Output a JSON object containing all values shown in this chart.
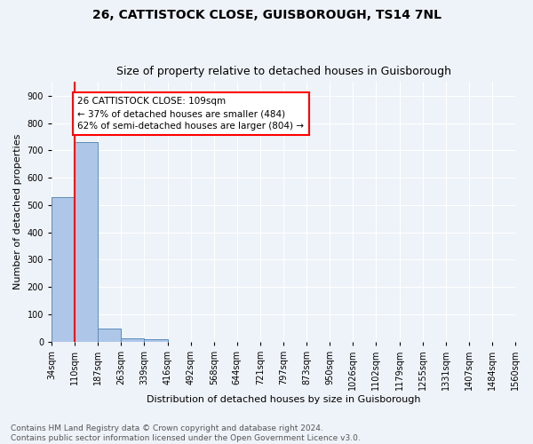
{
  "title_line1": "26, CATTISTOCK CLOSE, GUISBOROUGH, TS14 7NL",
  "title_line2": "Size of property relative to detached houses in Guisborough",
  "xlabel": "Distribution of detached houses by size in Guisborough",
  "ylabel": "Number of detached properties",
  "footnote": "Contains HM Land Registry data © Crown copyright and database right 2024.\nContains public sector information licensed under the Open Government Licence v3.0.",
  "bin_edges": [
    34,
    110,
    187,
    263,
    339,
    416,
    492,
    568,
    644,
    721,
    797,
    873,
    950,
    1026,
    1102,
    1179,
    1255,
    1331,
    1407,
    1484,
    1560
  ],
  "bin_labels": [
    "34sqm",
    "110sqm",
    "187sqm",
    "263sqm",
    "339sqm",
    "416sqm",
    "492sqm",
    "568sqm",
    "644sqm",
    "721sqm",
    "797sqm",
    "873sqm",
    "950sqm",
    "1026sqm",
    "1102sqm",
    "1179sqm",
    "1255sqm",
    "1331sqm",
    "1407sqm",
    "1484sqm",
    "1560sqm"
  ],
  "bar_heights": [
    528,
    730,
    48,
    12,
    10,
    0,
    0,
    0,
    0,
    0,
    0,
    0,
    0,
    0,
    0,
    0,
    0,
    0,
    0,
    0
  ],
  "bar_color": "#aec6e8",
  "bar_edge_color": "#5b8db8",
  "red_line_x": 109,
  "annotation_text": "26 CATTISTOCK CLOSE: 109sqm\n← 37% of detached houses are smaller (484)\n62% of semi-detached houses are larger (804) →",
  "annotation_box_color": "white",
  "annotation_box_edge_color": "red",
  "red_line_color": "red",
  "ylim": [
    0,
    950
  ],
  "background_color": "#eef3f9",
  "grid_color": "white",
  "title_fontsize": 10,
  "subtitle_fontsize": 9,
  "axis_label_fontsize": 8,
  "tick_fontsize": 7,
  "annotation_fontsize": 7.5,
  "footnote_fontsize": 6.5
}
